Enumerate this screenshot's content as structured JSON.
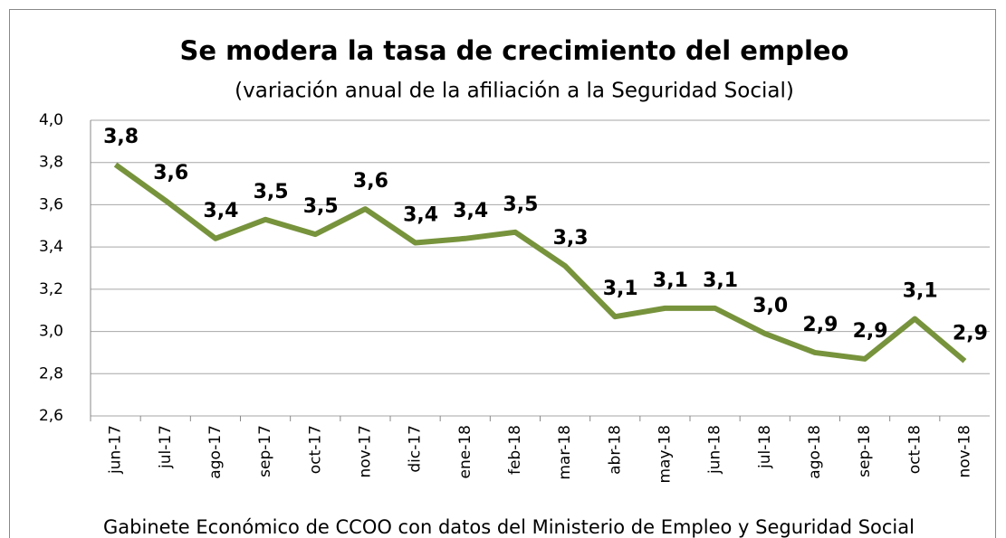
{
  "chart_data": {
    "type": "line",
    "title": "Se modera la tasa de crecimiento del empleo",
    "subtitle": "(variación anual de la afiliación a la Seguridad Social)",
    "source": "Gabinete Económico de CCOO con datos del Ministerio de Empleo y Seguridad Social",
    "categories": [
      "jun-17",
      "jul-17",
      "ago-17",
      "sep-17",
      "oct-17",
      "nov-17",
      "dic-17",
      "ene-18",
      "feb-18",
      "mar-18",
      "abr-18",
      "may-18",
      "jun-18",
      "jul-18",
      "ago-18",
      "sep-18",
      "oct-18",
      "nov-18"
    ],
    "series": [
      {
        "name": "Afiliación",
        "color": "#77933c",
        "values": [
          3.79,
          3.62,
          3.44,
          3.53,
          3.46,
          3.58,
          3.42,
          3.44,
          3.47,
          3.31,
          3.07,
          3.11,
          3.11,
          2.99,
          2.9,
          2.87,
          3.06,
          2.86
        ],
        "value_labels": [
          "3,8",
          "3,6",
          "3,4",
          "3,5",
          "3,5",
          "3,6",
          "3,4",
          "3,4",
          "3,5",
          "3,3",
          "3,1",
          "3,1",
          "3,1",
          "3,0",
          "2,9",
          "2,9",
          "3,1",
          "2,9"
        ]
      }
    ],
    "ylim": [
      2.6,
      4.0
    ],
    "yticks": [
      {
        "value": 2.6,
        "label": "2,6"
      },
      {
        "value": 2.8,
        "label": "2,8"
      },
      {
        "value": 3.0,
        "label": "3,0"
      },
      {
        "value": 3.2,
        "label": "3,2"
      },
      {
        "value": 3.4,
        "label": "3,4"
      },
      {
        "value": 3.6,
        "label": "3,6"
      },
      {
        "value": 3.8,
        "label": "3,8"
      },
      {
        "value": 4.0,
        "label": "4,0"
      }
    ],
    "grid": true
  }
}
